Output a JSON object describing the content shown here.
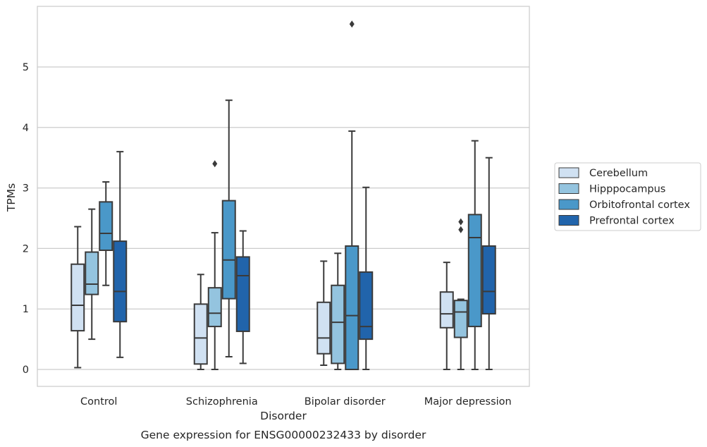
{
  "chart_data": {
    "type": "box",
    "caption": "Gene expression for ENSG00000232433 by disorder",
    "xlabel": "Disorder",
    "ylabel": "TPMs",
    "ylim": [
      -0.28,
      6.0
    ],
    "yticks": [
      "0",
      "1",
      "2",
      "3",
      "4",
      "5"
    ],
    "grid": "horizontal",
    "legend_position": "right",
    "categories": [
      "Control",
      "Schizophrenia",
      "Bipolar disorder",
      "Major depression"
    ],
    "series": [
      {
        "name": "Cerebellum",
        "color": "#d0e1f2",
        "boxes": [
          {
            "whisker_low": 0.03,
            "q1": 0.64,
            "median": 1.06,
            "q3": 1.74,
            "whisker_high": 2.36,
            "outliers": []
          },
          {
            "whisker_low": 0.0,
            "q1": 0.09,
            "median": 0.52,
            "q3": 1.08,
            "whisker_high": 1.57,
            "outliers": []
          },
          {
            "whisker_low": 0.07,
            "q1": 0.26,
            "median": 0.52,
            "q3": 1.11,
            "whisker_high": 1.79,
            "outliers": []
          },
          {
            "whisker_low": 0.0,
            "q1": 0.69,
            "median": 0.92,
            "q3": 1.28,
            "whisker_high": 1.77,
            "outliers": []
          }
        ]
      },
      {
        "name": "Hipppocampus",
        "color": "#94c4df",
        "boxes": [
          {
            "whisker_low": 0.5,
            "q1": 1.24,
            "median": 1.41,
            "q3": 1.94,
            "whisker_high": 2.65,
            "outliers": []
          },
          {
            "whisker_low": 0.0,
            "q1": 0.71,
            "median": 0.93,
            "q3": 1.35,
            "whisker_high": 2.26,
            "outliers": [
              3.4
            ]
          },
          {
            "whisker_low": 0.0,
            "q1": 0.1,
            "median": 0.78,
            "q3": 1.39,
            "whisker_high": 1.92,
            "outliers": []
          },
          {
            "whisker_low": 0.0,
            "q1": 0.53,
            "median": 0.95,
            "q3": 1.14,
            "whisker_high": 1.16,
            "outliers": [
              2.31,
              2.44
            ]
          }
        ]
      },
      {
        "name": "Orbitofrontal cortex",
        "color": "#4a98c9",
        "boxes": [
          {
            "whisker_low": 1.39,
            "q1": 1.97,
            "median": 2.25,
            "q3": 2.77,
            "whisker_high": 3.1,
            "outliers": []
          },
          {
            "whisker_low": 0.21,
            "q1": 1.17,
            "median": 1.81,
            "q3": 2.79,
            "whisker_high": 4.45,
            "outliers": []
          },
          {
            "whisker_low": 0.0,
            "q1": 0.0,
            "median": 0.89,
            "q3": 2.04,
            "whisker_high": 3.94,
            "outliers": [
              5.71
            ]
          },
          {
            "whisker_low": 0.0,
            "q1": 0.71,
            "median": 2.18,
            "q3": 2.56,
            "whisker_high": 3.78,
            "outliers": []
          }
        ]
      },
      {
        "name": "Prefrontal cortex",
        "color": "#2164ab",
        "boxes": [
          {
            "whisker_low": 0.2,
            "q1": 0.79,
            "median": 1.29,
            "q3": 2.12,
            "whisker_high": 3.6,
            "outliers": []
          },
          {
            "whisker_low": 0.1,
            "q1": 0.63,
            "median": 1.55,
            "q3": 1.86,
            "whisker_high": 2.29,
            "outliers": []
          },
          {
            "whisker_low": 0.0,
            "q1": 0.5,
            "median": 0.71,
            "q3": 1.61,
            "whisker_high": 3.01,
            "outliers": []
          },
          {
            "whisker_low": 0.0,
            "q1": 0.92,
            "median": 1.29,
            "q3": 2.04,
            "whisker_high": 3.5,
            "outliers": []
          }
        ]
      }
    ]
  }
}
